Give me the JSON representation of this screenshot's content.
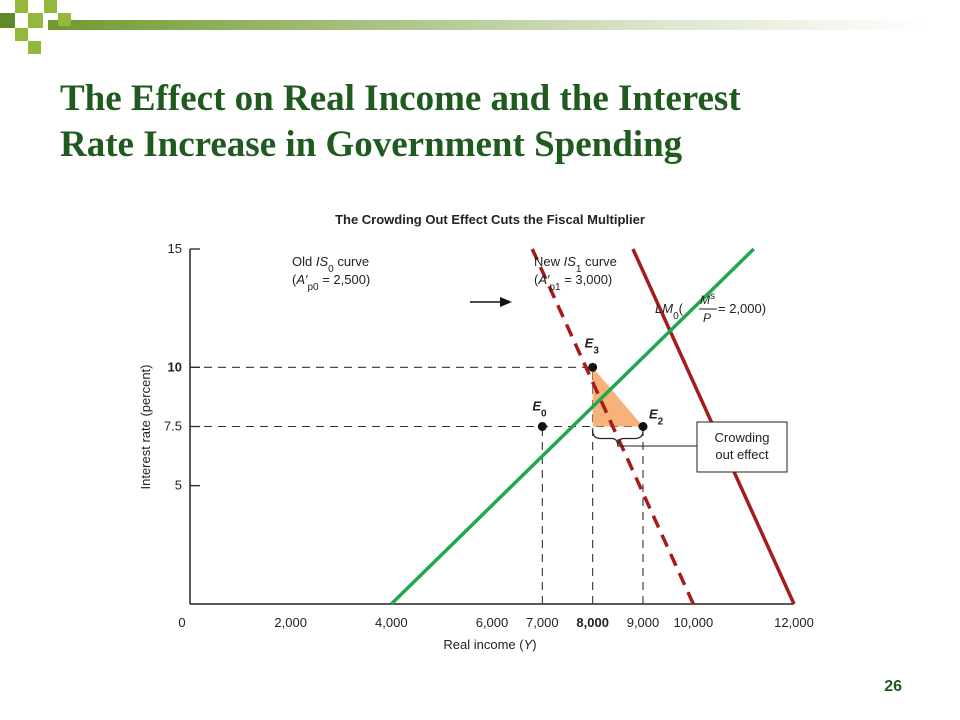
{
  "slide": {
    "title_line1": "The Effect on Real Income and the Interest",
    "title_line2": "Rate Increase in Government Spending",
    "page_number": "26",
    "title_color": "#1f5a1f",
    "deco_colors": [
      "#94b83c",
      "#5f8a2a"
    ]
  },
  "chart_data": {
    "type": "line",
    "title": "The Crowding Out Effect Cuts the Fiscal Multiplier",
    "xlabel": "Real income (Y)",
    "ylabel": "Interest rate (percent)",
    "xlim": [
      0,
      12000
    ],
    "ylim": [
      0,
      15
    ],
    "x_ticks": [
      {
        "value": 0,
        "label": "0"
      },
      {
        "value": 2000,
        "label": "2,000"
      },
      {
        "value": 4000,
        "label": "4,000"
      },
      {
        "value": 6000,
        "label": "6,000"
      },
      {
        "value": 7000,
        "label": "7,000"
      },
      {
        "value": 8000,
        "label": "8,000",
        "bold": true
      },
      {
        "value": 9000,
        "label": "9,000"
      },
      {
        "value": 10000,
        "label": "10,000"
      },
      {
        "value": 12000,
        "label": "12,000"
      }
    ],
    "y_ticks": [
      {
        "value": 5,
        "label": "5"
      },
      {
        "value": 7.5,
        "label": "7.5"
      },
      {
        "value": 10,
        "label": "10",
        "bold": true
      },
      {
        "value": 15,
        "label": "15"
      }
    ],
    "series": [
      {
        "key": "is0",
        "color": "#a51c1c",
        "dashed": true,
        "points": [
          [
            10000,
            0
          ],
          [
            6800,
            15
          ]
        ],
        "label_lines": [
          "Old IS0 curve",
          "(A'p0 = 2,500)"
        ]
      },
      {
        "key": "is1",
        "color": "#a51c1c",
        "dashed": false,
        "points": [
          [
            12000,
            0
          ],
          [
            8800,
            15
          ]
        ],
        "label_lines": [
          "New IS1 curve",
          "(A'p1 = 3,000)"
        ]
      },
      {
        "key": "lm0",
        "color": "#1fa84f",
        "dashed": false,
        "points": [
          [
            4000,
            0
          ],
          [
            11200,
            15
          ]
        ],
        "label": "LM0(Ms/P = 2,000)"
      }
    ],
    "points": [
      {
        "name": "E0",
        "x": 7000,
        "y": 7.5
      },
      {
        "name": "E3",
        "x": 8000,
        "y": 10
      },
      {
        "name": "E2",
        "x": 9000,
        "y": 7.5
      }
    ],
    "reference_lines": [
      {
        "axis": "y",
        "value": 10,
        "to_x": 8000
      },
      {
        "axis": "y",
        "value": 7.5,
        "to_x": 9000
      },
      {
        "axis": "x",
        "value": 7000,
        "to_y": 7.5
      },
      {
        "axis": "x",
        "value": 8000,
        "to_y": 10
      },
      {
        "axis": "x",
        "value": 9000,
        "to_y": 7.5
      }
    ],
    "shaded_triangle": {
      "vertices": [
        [
          8000,
          10
        ],
        [
          8000,
          7.5
        ],
        [
          9000,
          7.5
        ]
      ],
      "color": "#f7b27a"
    },
    "annotation": {
      "lines": [
        "Crowding",
        "out effect"
      ],
      "brace_from": 8000,
      "brace_to": 9000
    },
    "shift_arrow": true
  }
}
